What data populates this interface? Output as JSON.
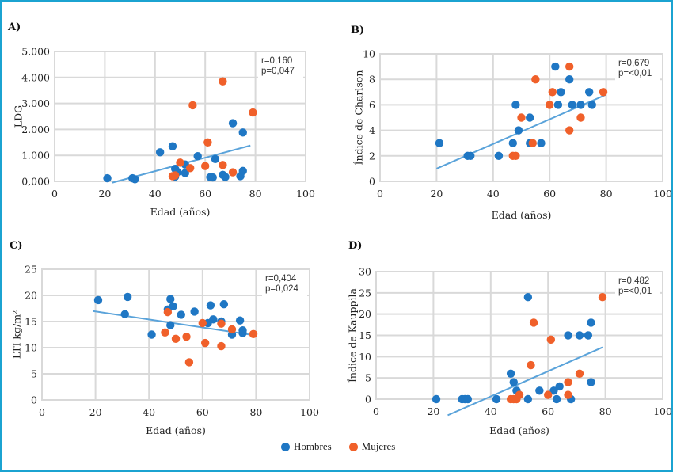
{
  "colors": {
    "hombres": "#1f77c4",
    "mujeres": "#f0602a",
    "trend": "#5aa3da",
    "grid": "#d9d9d9",
    "frame": "#1ba3d1"
  },
  "legend": [
    {
      "key": "hombres",
      "label": "Hombres"
    },
    {
      "key": "mujeres",
      "label": "Mujeres"
    }
  ],
  "chart_data": [
    {
      "id": "A",
      "panel_label": "A)",
      "type": "scatter",
      "xlabel": "Edad (años)",
      "ylabel": "LDG",
      "xlim": [
        0,
        100
      ],
      "ylim": [
        0,
        5000
      ],
      "xticks": [
        0,
        20,
        40,
        60,
        80,
        100
      ],
      "xtick_labels": [
        "0",
        "20",
        "40",
        "60",
        "80",
        "100"
      ],
      "yticks": [
        0,
        1000,
        2000,
        3000,
        4000,
        5000
      ],
      "ytick_labels": [
        "0,000",
        "1.000",
        "2.000",
        "3.000",
        "4.000",
        "5.000"
      ],
      "grid": true,
      "annotation": [
        "r=0,160",
        "p=0,047"
      ],
      "trendline": {
        "x": [
          23,
          78
        ],
        "y": [
          -50,
          1380
        ]
      },
      "series": [
        {
          "name": "Hombres",
          "key": "hombres",
          "points": [
            [
              21,
              120
            ],
            [
              31,
              120
            ],
            [
              32,
              80
            ],
            [
              42,
              1120
            ],
            [
              47,
              1350
            ],
            [
              48,
              480
            ],
            [
              49,
              360
            ],
            [
              48,
              180
            ],
            [
              52,
              650
            ],
            [
              52,
              320
            ],
            [
              57,
              970
            ],
            [
              62,
              160
            ],
            [
              63,
              150
            ],
            [
              64,
              860
            ],
            [
              67,
              250
            ],
            [
              68,
              170
            ],
            [
              71,
              2240
            ],
            [
              74,
              200
            ],
            [
              75,
              400
            ],
            [
              75,
              1880
            ]
          ]
        },
        {
          "name": "Mujeres",
          "key": "mujeres",
          "points": [
            [
              47,
              200
            ],
            [
              48,
              230
            ],
            [
              50,
              720
            ],
            [
              54,
              510
            ],
            [
              55,
              2930
            ],
            [
              60,
              590
            ],
            [
              61,
              1500
            ],
            [
              67,
              3850
            ],
            [
              67,
              630
            ],
            [
              71,
              350
            ],
            [
              79,
              2650
            ]
          ]
        }
      ]
    },
    {
      "id": "B",
      "panel_label": "B)",
      "type": "scatter",
      "xlabel": "Edad (años)",
      "ylabel": "Índice de Charlson",
      "xlim": [
        0,
        100
      ],
      "ylim": [
        0,
        10
      ],
      "xticks": [
        0,
        20,
        40,
        60,
        80,
        100
      ],
      "xtick_labels": [
        "0",
        "20",
        "40",
        "60",
        "80",
        "100"
      ],
      "yticks": [
        0,
        2,
        4,
        6,
        8,
        10
      ],
      "ytick_labels": [
        "0",
        "2",
        "4",
        "6",
        "8",
        "10"
      ],
      "grid": true,
      "annotation": [
        "r=0,679",
        "p=<0,01"
      ],
      "trendline": {
        "x": [
          20,
          80
        ],
        "y": [
          1.0,
          6.8
        ]
      },
      "series": [
        {
          "name": "Hombres",
          "key": "hombres",
          "points": [
            [
              21,
              3
            ],
            [
              31,
              2
            ],
            [
              32,
              2
            ],
            [
              42,
              2
            ],
            [
              47,
              3
            ],
            [
              48,
              6
            ],
            [
              49,
              4
            ],
            [
              53,
              5
            ],
            [
              53,
              3
            ],
            [
              57,
              3
            ],
            [
              62,
              9
            ],
            [
              63,
              6
            ],
            [
              64,
              7
            ],
            [
              67,
              8
            ],
            [
              68,
              6
            ],
            [
              71,
              6
            ],
            [
              74,
              7
            ],
            [
              75,
              6
            ]
          ]
        },
        {
          "name": "Mujeres",
          "key": "mujeres",
          "points": [
            [
              47,
              2
            ],
            [
              48,
              2
            ],
            [
              50,
              5
            ],
            [
              54,
              3
            ],
            [
              55,
              8
            ],
            [
              60,
              6
            ],
            [
              61,
              7
            ],
            [
              67,
              9
            ],
            [
              67,
              4
            ],
            [
              71,
              5
            ],
            [
              79,
              7
            ]
          ]
        }
      ]
    },
    {
      "id": "C",
      "panel_label": "C)",
      "type": "scatter",
      "xlabel": "Edad (años)",
      "ylabel": "LTI kg/m²",
      "xlim": [
        0,
        100
      ],
      "ylim": [
        0,
        25
      ],
      "xticks": [
        0,
        20,
        40,
        60,
        80,
        100
      ],
      "xtick_labels": [
        "0",
        "20",
        "40",
        "60",
        "80",
        "100"
      ],
      "yticks": [
        0,
        5,
        10,
        15,
        20,
        25
      ],
      "ytick_labels": [
        "0",
        "5",
        "10",
        "15",
        "20",
        "25"
      ],
      "grid": true,
      "annotation": [
        "r=0,404",
        "p=0,024"
      ],
      "trendline": {
        "x": [
          19,
          79
        ],
        "y": [
          17.0,
          12.4
        ]
      },
      "series": [
        {
          "name": "Hombres",
          "key": "hombres",
          "points": [
            [
              21,
              19.1
            ],
            [
              31,
              16.4
            ],
            [
              32,
              19.7
            ],
            [
              41,
              12.5
            ],
            [
              47,
              17.3
            ],
            [
              48,
              19.3
            ],
            [
              48,
              14.3
            ],
            [
              49,
              17.9
            ],
            [
              52,
              16.3
            ],
            [
              57,
              16.9
            ],
            [
              62,
              14.7
            ],
            [
              63,
              18.1
            ],
            [
              64,
              15.4
            ],
            [
              67,
              15.0
            ],
            [
              68,
              18.3
            ],
            [
              71,
              12.5
            ],
            [
              74,
              15.2
            ],
            [
              75,
              13.3
            ],
            [
              75,
              12.8
            ]
          ]
        },
        {
          "name": "Mujeres",
          "key": "mujeres",
          "points": [
            [
              46,
              12.9
            ],
            [
              47,
              16.8
            ],
            [
              50,
              11.7
            ],
            [
              54,
              12.1
            ],
            [
              55,
              7.2
            ],
            [
              60,
              14.7
            ],
            [
              61,
              10.9
            ],
            [
              67,
              14.6
            ],
            [
              67,
              10.3
            ],
            [
              71,
              13.5
            ],
            [
              79,
              12.6
            ]
          ]
        }
      ]
    },
    {
      "id": "D",
      "panel_label": "D)",
      "type": "scatter",
      "xlabel": "Edad (años)",
      "ylabel": "Índice de Kauppila",
      "xlim": [
        0,
        100
      ],
      "ylim": [
        0,
        30
      ],
      "xticks": [
        0,
        20,
        40,
        60,
        80,
        100
      ],
      "xtick_labels": [
        "0",
        "20",
        "40",
        "60",
        "80",
        "100"
      ],
      "yticks": [
        0,
        5,
        10,
        15,
        20,
        25,
        30
      ],
      "ytick_labels": [
        "0",
        "5",
        "10",
        "15",
        "20",
        "25",
        "30"
      ],
      "grid": true,
      "annotation": [
        "r=0,482",
        "p=<0,01"
      ],
      "trendline": {
        "x": [
          25,
          79
        ],
        "y": [
          -3.8,
          12.2
        ]
      },
      "series": [
        {
          "name": "Hombres",
          "key": "hombres",
          "points": [
            [
              21,
              0
            ],
            [
              30,
              0
            ],
            [
              31,
              0
            ],
            [
              32,
              0
            ],
            [
              42,
              0
            ],
            [
              47,
              6
            ],
            [
              48,
              4
            ],
            [
              49,
              2
            ],
            [
              53,
              24
            ],
            [
              53,
              0
            ],
            [
              57,
              2
            ],
            [
              62,
              2
            ],
            [
              63,
              0
            ],
            [
              64,
              3
            ],
            [
              67,
              15
            ],
            [
              68,
              0
            ],
            [
              71,
              15
            ],
            [
              74,
              15
            ],
            [
              75,
              18
            ],
            [
              75,
              4
            ]
          ]
        },
        {
          "name": "Mujeres",
          "key": "mujeres",
          "points": [
            [
              47,
              0
            ],
            [
              48,
              0
            ],
            [
              49,
              0
            ],
            [
              50,
              1
            ],
            [
              54,
              8
            ],
            [
              55,
              18
            ],
            [
              60,
              1
            ],
            [
              61,
              14
            ],
            [
              67,
              4
            ],
            [
              67,
              1
            ],
            [
              71,
              6
            ],
            [
              79,
              24
            ]
          ]
        }
      ]
    }
  ]
}
